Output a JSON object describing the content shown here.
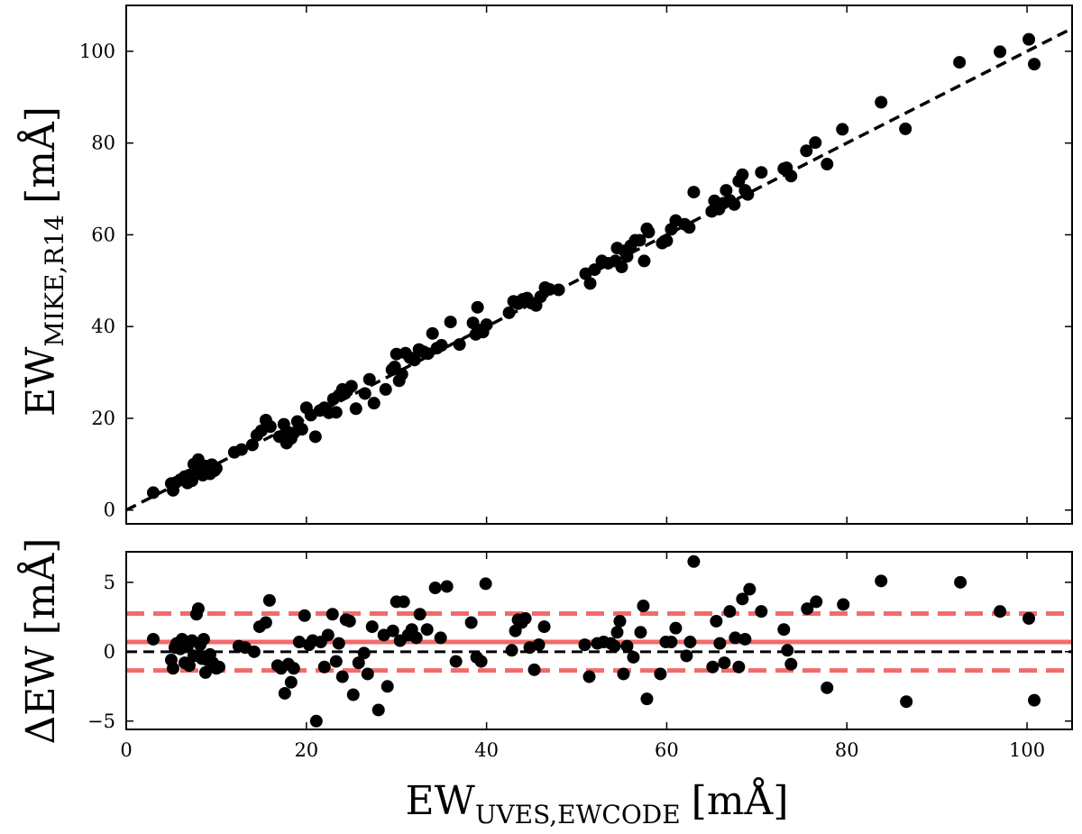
{
  "colors": {
    "points": "#000000",
    "fit_line": "#000000",
    "mean_line": "#f26b6b",
    "band_lines": "#f26b6b"
  },
  "chart_data": [
    {
      "id": "top",
      "type": "scatter",
      "xlim": [
        0,
        105
      ],
      "ylim": [
        -3,
        110
      ],
      "xticks": [
        "0",
        "20",
        "40",
        "60",
        "80",
        "100"
      ],
      "xtick_values": [
        0,
        20,
        40,
        60,
        80,
        100
      ],
      "show_xtick_labels": false,
      "yticks": [
        "0",
        "20",
        "40",
        "60",
        "80",
        "100"
      ],
      "ytick_values": [
        0,
        20,
        40,
        60,
        80,
        100
      ],
      "ylabel": {
        "main": "EW",
        "sub": "MIKE,R14",
        "unit": "[mÅ]"
      },
      "reference_line": {
        "style": "dashed",
        "from": [
          0,
          0
        ],
        "to": [
          105,
          105
        ],
        "label": "one-to-one"
      },
      "x": [
        3.0,
        5.0,
        5.2,
        5.5,
        6.0,
        6.5,
        6.8,
        7.0,
        7.3,
        7.5,
        7.8,
        8.0,
        8.2,
        8.5,
        8.8,
        9.0,
        9.3,
        9.5,
        9.8,
        10.0,
        12.0,
        12.8,
        14.0,
        14.5,
        15.0,
        15.5,
        16.0,
        17.0,
        17.5,
        17.8,
        18.0,
        18.3,
        18.6,
        19.0,
        19.5,
        20.0,
        20.5,
        21.0,
        21.5,
        22.0,
        22.5,
        23.0,
        23.3,
        23.6,
        24.0,
        24.5,
        25.0,
        25.5,
        26.5,
        27.0,
        27.5,
        28.8,
        29.5,
        29.8,
        30.0,
        30.3,
        30.6,
        31.0,
        31.5,
        32.0,
        32.5,
        33.0,
        33.5,
        34.0,
        34.5,
        35.0,
        36.0,
        37.0,
        38.5,
        38.8,
        39.0,
        39.3,
        39.6,
        40.0,
        42.5,
        43.0,
        43.5,
        44.0,
        44.5,
        45.0,
        45.5,
        46.0,
        46.5,
        47.0,
        48.0,
        51.0,
        51.5,
        52.0,
        52.8,
        53.5,
        54.3,
        54.5,
        55.0,
        55.3,
        55.6,
        56.0,
        56.5,
        57.0,
        57.5,
        57.8,
        58.0,
        59.5,
        60.0,
        60.5,
        61.0,
        62.0,
        62.5,
        63.0,
        65.0,
        65.3,
        65.8,
        66.3,
        66.6,
        67.0,
        67.5,
        68.0,
        68.4,
        68.7,
        69.0,
        70.5,
        73.0,
        73.3,
        73.8,
        75.5,
        76.5,
        77.8,
        79.5,
        83.8,
        86.5,
        92.5,
        97.0,
        100.2,
        100.8
      ],
      "y": [
        3.8,
        5.8,
        4.3,
        6.0,
        6.6,
        7.3,
        5.9,
        7.6,
        6.4,
        10.0,
        9.2,
        11.0,
        8.8,
        7.6,
        9.6,
        8.8,
        7.9,
        9.9,
        8.6,
        9.1,
        12.6,
        13.2,
        14.2,
        16.3,
        17.3,
        19.6,
        18.2,
        16.0,
        18.7,
        14.6,
        16.9,
        15.6,
        16.8,
        19.3,
        17.6,
        22.3,
        20.7,
        16.0,
        21.7,
        22.3,
        21.2,
        24.2,
        21.3,
        25.0,
        26.3,
        25.9,
        27.0,
        22.1,
        25.4,
        28.5,
        23.3,
        26.3,
        30.6,
        31.2,
        34.0,
        28.2,
        29.6,
        34.2,
        33.2,
        32.7,
        35.0,
        34.5,
        34.1,
        38.5,
        35.3,
        35.9,
        41.0,
        36.1,
        40.8,
        38.3,
        44.2,
        39.2,
        38.8,
        40.4,
        43.0,
        45.5,
        45.0,
        45.9,
        46.2,
        45.1,
        44.6,
        46.5,
        48.5,
        48.1,
        48.0,
        51.5,
        49.4,
        52.4,
        54.3,
        53.8,
        54.3,
        57.1,
        53.0,
        56.5,
        55.3,
        57.6,
        58.8,
        58.8,
        54.3,
        61.3,
        60.6,
        58.2,
        58.7,
        61.2,
        63.1,
        62.3,
        61.6,
        69.3,
        65.1,
        67.4,
        65.6,
        66.9,
        69.7,
        67.5,
        66.6,
        71.7,
        73.1,
        69.7,
        68.8,
        73.6,
        74.4,
        74.6,
        72.8,
        78.3,
        80.1,
        75.4,
        83.0,
        88.9,
        83.1,
        97.6,
        99.9,
        102.6,
        97.2
      ],
      "marker": "filled-circle"
    },
    {
      "id": "bottom",
      "type": "scatter",
      "xlim": [
        0,
        105
      ],
      "ylim": [
        -5.6,
        7.2
      ],
      "xticks": [
        "0",
        "20",
        "40",
        "60",
        "80",
        "100"
      ],
      "xtick_values": [
        0,
        20,
        40,
        60,
        80,
        100
      ],
      "show_xtick_labels": true,
      "yticks": [
        "−5",
        "0",
        "5"
      ],
      "ytick_values": [
        -5,
        0,
        5
      ],
      "xlabel": {
        "main": "EW",
        "sub": "UVES,EWCODE",
        "unit": "[mÅ]"
      },
      "ylabel": {
        "main": "ΔEW",
        "unit": "[mÅ]"
      },
      "horizontal_lines": [
        {
          "y": 0.0,
          "style": "dashed",
          "color": "#000000",
          "label": "zero"
        },
        {
          "y": 0.7,
          "style": "solid",
          "color": "#f26b6b",
          "label": "mean"
        },
        {
          "y": 2.75,
          "style": "dashed",
          "color": "#f26b6b",
          "label": "upper-band"
        },
        {
          "y": -1.35,
          "style": "dashed",
          "color": "#f26b6b",
          "label": "lower-band"
        }
      ],
      "x": [
        3.0,
        5.0,
        5.2,
        5.4,
        5.6,
        6.0,
        6.2,
        6.5,
        6.8,
        7.0,
        7.3,
        7.5,
        7.8,
        8.0,
        8.2,
        8.4,
        8.6,
        8.8,
        9.0,
        9.3,
        9.6,
        10.0,
        10.3,
        12.5,
        13.2,
        14.2,
        14.8,
        15.5,
        15.9,
        16.8,
        17.2,
        17.6,
        18.0,
        18.3,
        18.6,
        19.2,
        19.8,
        20.3,
        20.7,
        21.1,
        21.6,
        22.0,
        22.4,
        22.9,
        23.3,
        23.6,
        24.0,
        24.4,
        24.8,
        25.2,
        25.8,
        26.4,
        26.8,
        27.3,
        28.0,
        28.6,
        29.0,
        29.6,
        30.0,
        30.4,
        30.8,
        31.3,
        31.7,
        32.2,
        32.6,
        33.4,
        34.3,
        34.9,
        35.6,
        36.6,
        38.3,
        38.9,
        39.4,
        39.9,
        42.8,
        43.2,
        43.5,
        43.9,
        44.3,
        44.8,
        45.3,
        45.8,
        46.4,
        50.9,
        51.4,
        52.3,
        53.0,
        53.8,
        54.2,
        54.5,
        54.8,
        55.2,
        55.6,
        56.3,
        57.1,
        57.4,
        57.8,
        59.3,
        59.9,
        60.5,
        61.0,
        62.2,
        62.6,
        63.0,
        65.1,
        65.5,
        65.9,
        66.4,
        67.0,
        67.6,
        68.0,
        68.4,
        68.7,
        69.2,
        70.5,
        73.0,
        73.4,
        73.8,
        75.6,
        76.6,
        77.8,
        79.6,
        83.8,
        86.6,
        92.6,
        97.0,
        100.2,
        100.8
      ],
      "y": [
        0.9,
        -0.6,
        -1.2,
        0.3,
        0.6,
        0.2,
        0.9,
        -0.8,
        0.4,
        -1.0,
        0.8,
        -0.3,
        2.7,
        3.1,
        0.5,
        -0.5,
        0.9,
        -1.5,
        -0.6,
        -0.2,
        -0.8,
        -1.2,
        -1.1,
        0.4,
        0.3,
        0.0,
        1.8,
        2.1,
        3.7,
        -1.0,
        -1.2,
        -3.0,
        -0.9,
        -2.2,
        -1.2,
        0.7,
        2.6,
        0.5,
        0.8,
        -5.0,
        0.7,
        -1.1,
        1.2,
        2.7,
        -0.7,
        0.6,
        -1.8,
        2.3,
        2.2,
        -3.1,
        -0.8,
        -0.1,
        -1.6,
        1.8,
        -4.2,
        1.2,
        -2.5,
        1.5,
        3.6,
        0.8,
        3.6,
        1.2,
        1.6,
        1.0,
        2.7,
        1.6,
        4.6,
        1.0,
        4.7,
        -0.7,
        2.1,
        -0.4,
        -0.7,
        4.9,
        0.1,
        1.5,
        2.3,
        2.1,
        2.4,
        0.3,
        -1.3,
        0.5,
        1.8,
        0.5,
        -1.8,
        0.6,
        0.7,
        0.6,
        0.4,
        1.4,
        2.2,
        -1.6,
        0.4,
        -0.4,
        1.4,
        3.3,
        -3.4,
        -1.6,
        0.7,
        0.7,
        1.7,
        -0.3,
        0.7,
        6.5,
        -1.1,
        2.2,
        0.6,
        -0.8,
        2.9,
        1.0,
        -1.1,
        3.8,
        0.9,
        4.5,
        2.9,
        1.6,
        0.1,
        -0.9,
        3.1,
        3.6,
        -2.6,
        3.4,
        5.1,
        -3.6,
        5.0,
        2.9,
        2.4,
        -3.5
      ],
      "marker": "filled-circle"
    }
  ]
}
